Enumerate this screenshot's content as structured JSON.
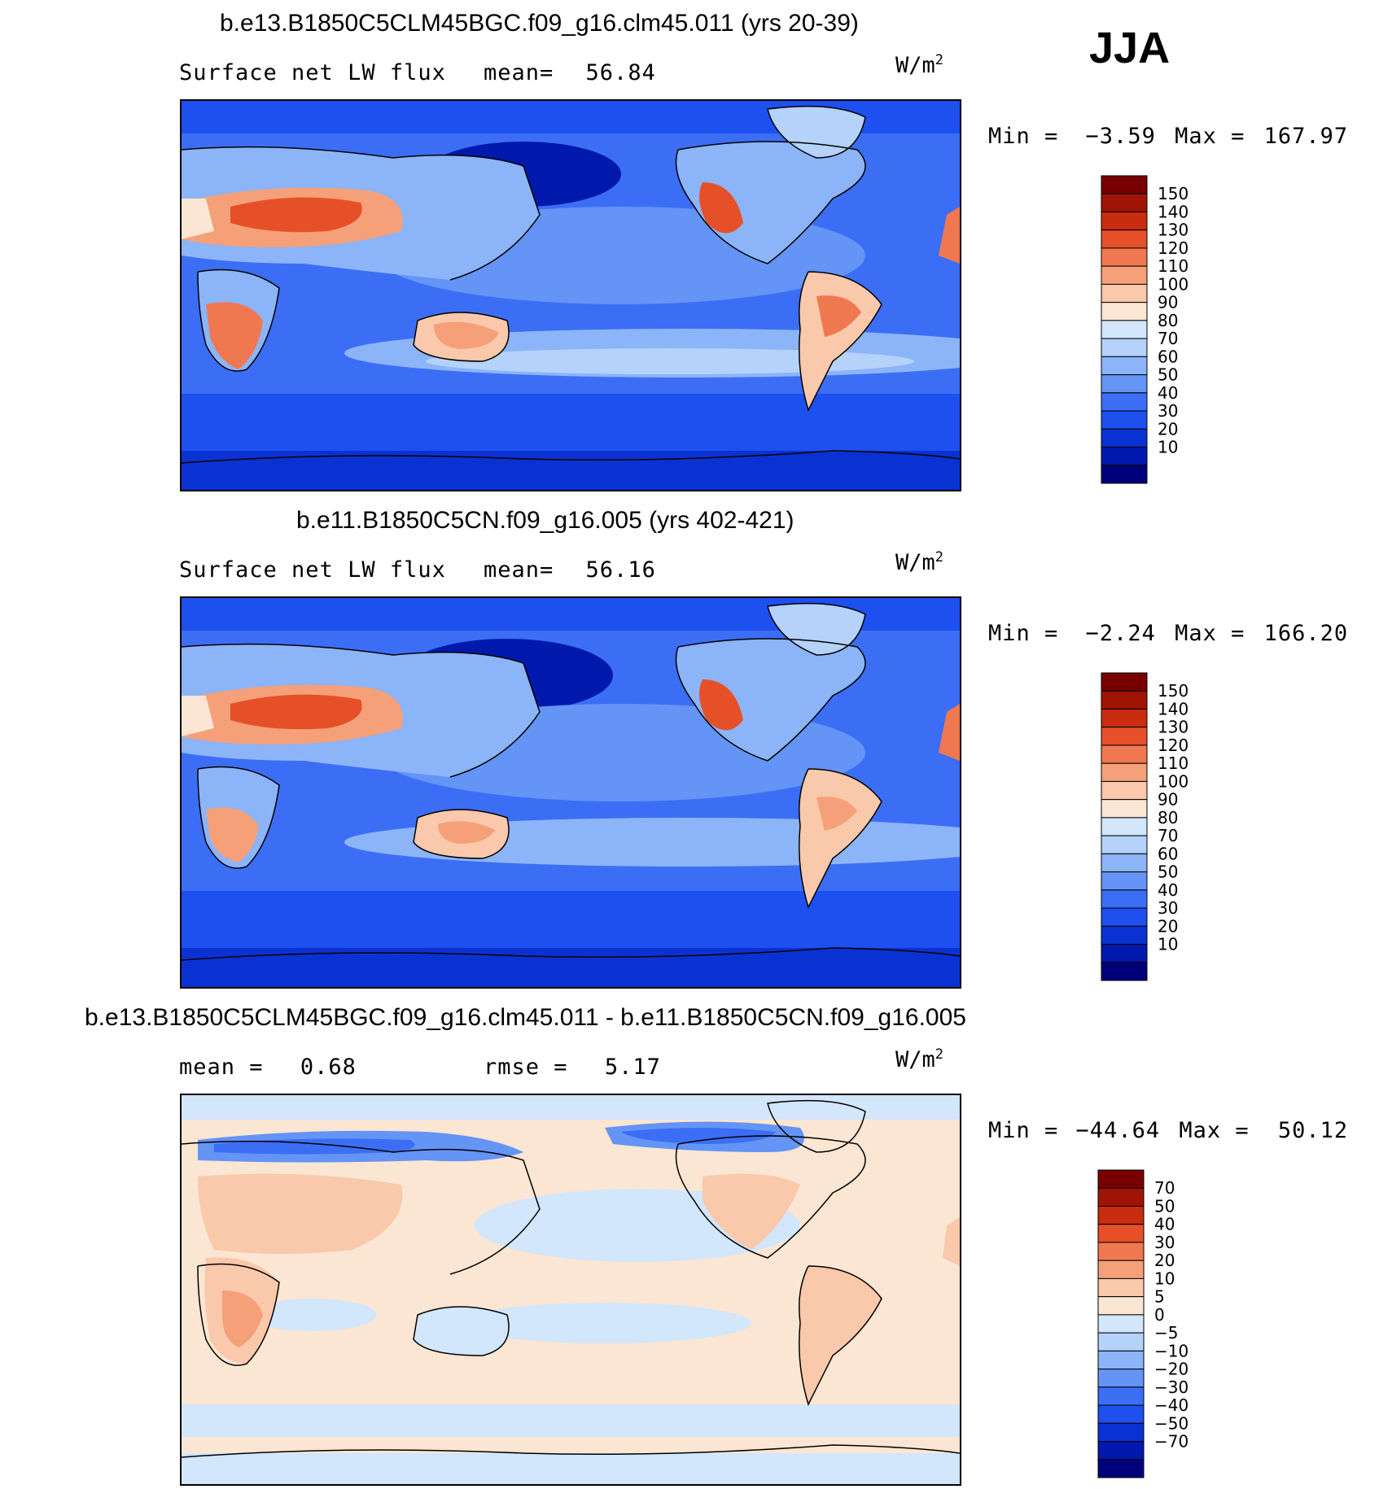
{
  "season": "JJA",
  "units_base": "W/m",
  "units_exp": "2",
  "colors": {
    "abs_scale": [
      "#00007a",
      "#0019ad",
      "#0a32d2",
      "#1e50f0",
      "#3c6ef5",
      "#6494f5",
      "#8cb4f8",
      "#b4d2fa",
      "#d2e6fc",
      "#fae6d2",
      "#fac8aa",
      "#f5a078",
      "#f07850",
      "#e65028",
      "#c82d0f",
      "#a01405",
      "#780000"
    ],
    "diff_scale": [
      "#00007a",
      "#0019ad",
      "#0a32d2",
      "#1e50f0",
      "#3c6ef5",
      "#6494f5",
      "#8cb4f8",
      "#b4d2fa",
      "#d2e6fc",
      "#fae6d2",
      "#fac8aa",
      "#f5a078",
      "#f07850",
      "#e65028",
      "#c82d0f",
      "#a01405",
      "#780000"
    ]
  },
  "panels": [
    {
      "title": "b.e13.B1850C5CLM45BGC.f09_g16.clm45.011 (yrs 20-39)",
      "left_label": "Surface net LW flux",
      "mid_label": "mean=",
      "mid_value": "56.84",
      "min_label": "Min =",
      "min_value": "−3.59",
      "max_label": "Max =",
      "max_value": "167.97",
      "colorbar_labels": [
        "150",
        "140",
        "130",
        "120",
        "110",
        "100",
        "90",
        "80",
        "70",
        "60",
        "50",
        "40",
        "30",
        "20",
        "10"
      ]
    },
    {
      "title": "b.e11.B1850C5CN.f09_g16.005 (yrs 402-421)",
      "left_label": "Surface net LW flux",
      "mid_label": "mean=",
      "mid_value": "56.16",
      "min_label": "Min =",
      "min_value": "−2.24",
      "max_label": "Max =",
      "max_value": "166.20",
      "colorbar_labels": [
        "150",
        "140",
        "130",
        "120",
        "110",
        "100",
        "90",
        "80",
        "70",
        "60",
        "50",
        "40",
        "30",
        "20",
        "10"
      ]
    },
    {
      "title": "b.e13.B1850C5CLM45BGC.f09_g16.clm45.011 - b.e11.B1850C5CN.f09_g16.005",
      "left_label": "mean =",
      "left_value": "0.68",
      "mid_label": "rmse =",
      "mid_value": "5.17",
      "min_label": "Min =",
      "min_value": "−44.64",
      "max_label": "Max =",
      "max_value": "50.12",
      "colorbar_labels": [
        "70",
        "50",
        "40",
        "30",
        "20",
        "10",
        "5",
        "0",
        "−5",
        "−10",
        "−20",
        "−30",
        "−40",
        "−50",
        "−70"
      ]
    }
  ]
}
